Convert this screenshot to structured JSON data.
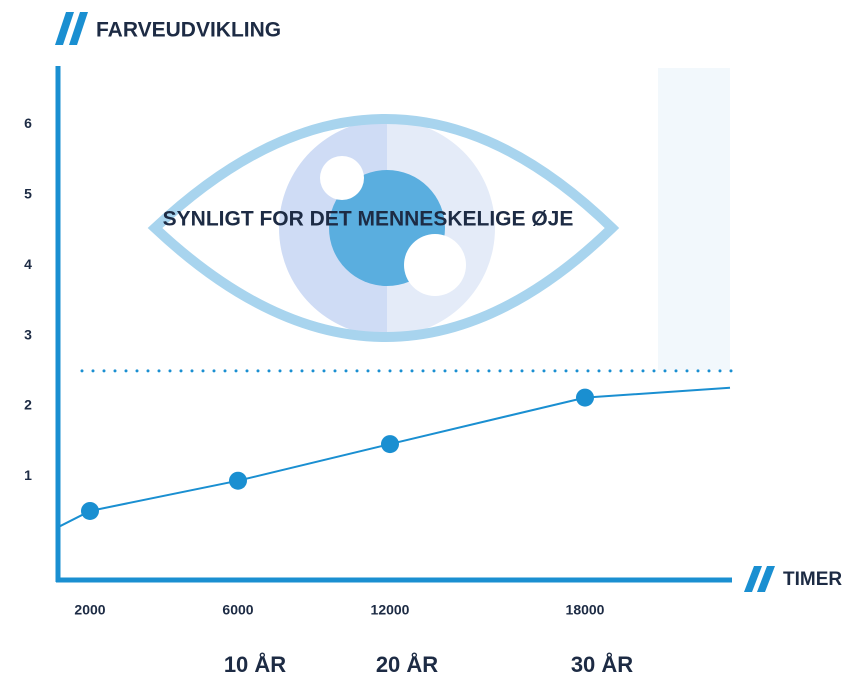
{
  "chart_data": {
    "type": "line",
    "title": "FARVEUDVIKLING",
    "x_label": "TIMER",
    "annotation": "SYNLIGT FOR DET MENNESKELIGE ØJE",
    "categories": [
      null,
      "2000",
      "6000",
      "12000",
      "18000",
      null
    ],
    "period_labels": [
      null,
      null,
      "10 ÅR",
      "20 ÅR",
      "30 ÅR",
      null
    ],
    "series": [
      {
        "color": "#1a8fd1",
        "values": [
          0.28,
          0.51,
          0.94,
          1.46,
          2.12,
          2.26
        ]
      }
    ],
    "threshold": 2.5,
    "ylim": [
      -0.47,
      6.8
    ],
    "yticks": [
      1,
      2,
      3,
      4,
      5,
      6
    ],
    "grid": false
  }
}
